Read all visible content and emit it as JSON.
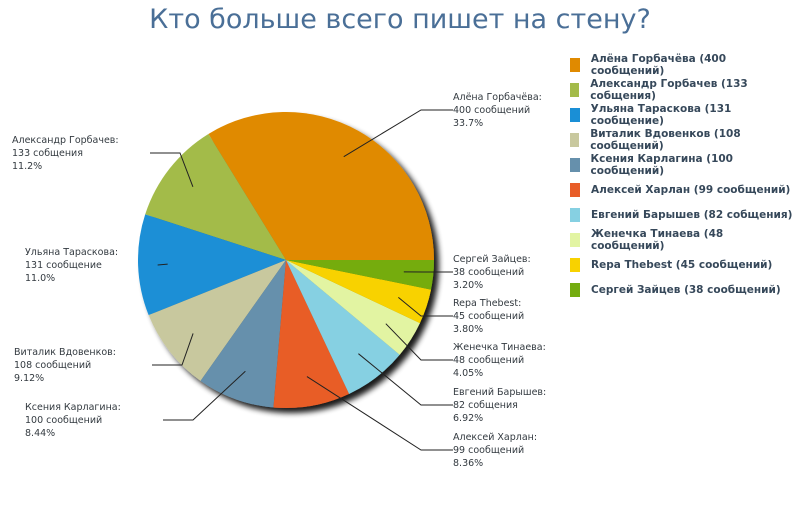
{
  "chart_data": {
    "type": "pie",
    "title": "Кто больше всего пишет на стену?",
    "slices": [
      {
        "name": "Алёна Горбачёва",
        "value": 400,
        "count_label": "400 сообщений",
        "percent": "33.7%",
        "legend": "Алёна Горбачёва (400 сообщений)",
        "color": "#e08a00"
      },
      {
        "name": "Александр Горбачев",
        "value": 133,
        "count_label": "133 собщения",
        "percent": "11.2%",
        "legend": "Александр Горбачев (133 собщения)",
        "color": "#a3bb4a"
      },
      {
        "name": "Ульяна Тараскова",
        "value": 131,
        "count_label": "131 сообщение",
        "percent": "11.0%",
        "legend": "Ульяна Тараскова (131 сообщение)",
        "color": "#1a8fd6"
      },
      {
        "name": "Виталик Вдовенков",
        "value": 108,
        "count_label": "108 сообщений",
        "percent": "9.12%",
        "legend": "Виталик Вдовенков (108 сообщений)",
        "color": "#c8c89e"
      },
      {
        "name": "Ксения Карлагина",
        "value": 100,
        "count_label": "100 сообщений",
        "percent": "8.44%",
        "legend": "Ксения Карлагина (100 сообщений)",
        "color": "#6690ac"
      },
      {
        "name": "Алексей Харлан",
        "value": 99,
        "count_label": "99 сообщений",
        "percent": "8.36%",
        "legend": "Алексей Харлан (99 сообщений)",
        "color": "#e85d28"
      },
      {
        "name": "Евгений Барышев",
        "value": 82,
        "count_label": "82 собщения",
        "percent": "6.92%",
        "legend": "Евгений Барышев (82 собщения)",
        "color": "#86d0e2"
      },
      {
        "name": "Женечка Тинаева",
        "value": 48,
        "count_label": "48 сообщений",
        "percent": "4.05%",
        "legend": "Женечка Тинаева (48 сообщений)",
        "color": "#e2f4a2"
      },
      {
        "name": "Repa Thebest",
        "value": 45,
        "count_label": "45 сообщений",
        "percent": "3.80%",
        "legend": "Repa Thebest (45 сообщений)",
        "color": "#f8d200"
      },
      {
        "name": "Сергей Зайцев",
        "value": 38,
        "count_label": "38 сообщений",
        "percent": "3.20%",
        "legend": "Сергей Зайцев (38 сообщений)",
        "color": "#74ac10"
      }
    ],
    "start_angle_deg": 0,
    "direction": "counterclockwise",
    "legend_position": "right"
  }
}
